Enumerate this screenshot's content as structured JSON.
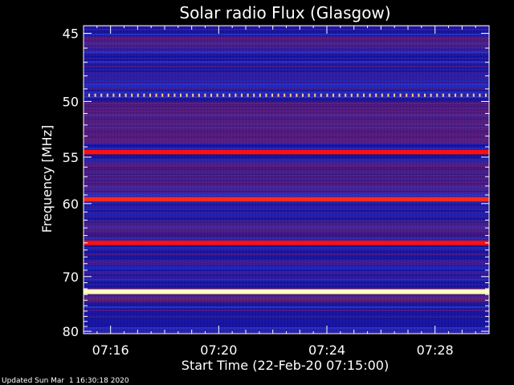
{
  "footer": {
    "updated": "Updated Sun Mar  1 16:30:18 2020"
  },
  "chart_data": {
    "type": "heatmap",
    "title": "Solar radio Flux (Glasgow)",
    "xlabel": "Start Time (22-Feb-20 07:15:00)",
    "ylabel": "Frequency [MHz]",
    "x_unit": "minutes past 07:00",
    "xlim": [
      15.0,
      30.0
    ],
    "ylim": [
      44.5,
      80.5
    ],
    "y_scale": "reciprocal",
    "x_ticks": [
      {
        "value": 16,
        "label": "07:16"
      },
      {
        "value": 20,
        "label": "07:20"
      },
      {
        "value": 24,
        "label": "07:24"
      },
      {
        "value": 28,
        "label": "07:28"
      }
    ],
    "y_ticks": [
      {
        "value": 45,
        "label": "45"
      },
      {
        "value": 50,
        "label": "50"
      },
      {
        "value": 55,
        "label": "55"
      },
      {
        "value": 60,
        "label": "60"
      },
      {
        "value": 70,
        "label": "70"
      },
      {
        "value": 80,
        "label": "80"
      }
    ],
    "y_minor_ticks": [
      46,
      47,
      48,
      49,
      51,
      52,
      53,
      54,
      56,
      57,
      58,
      59,
      61,
      62,
      63,
      64,
      65,
      66,
      67,
      68,
      69,
      71,
      72,
      73,
      74,
      75,
      76,
      77,
      78,
      79
    ],
    "emission_bands_mhz": [
      {
        "freq": 54.5,
        "intensity": "strong",
        "color": "#ff1010"
      },
      {
        "freq": 59.5,
        "intensity": "strong",
        "color": "#ff2a1a"
      },
      {
        "freq": 65.0,
        "intensity": "strong",
        "color": "#ff1010"
      },
      {
        "freq": 72.5,
        "intensity": "saturated",
        "color": "#ffffc0"
      }
    ],
    "colors": {
      "background": "#1a1aa8",
      "weak": "#2438d0",
      "moderate": "#902050",
      "strong": "#ff1010",
      "saturated": "#ffffc0"
    }
  }
}
